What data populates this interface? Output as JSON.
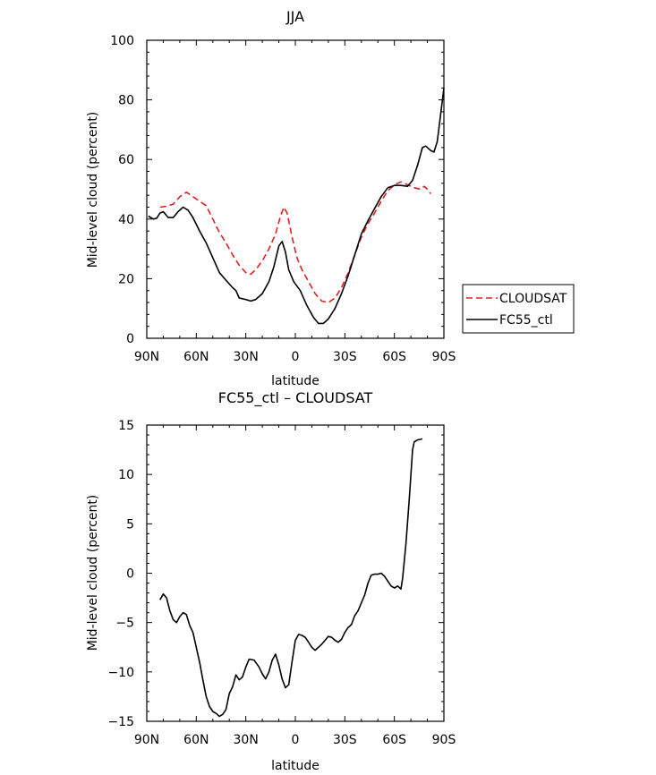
{
  "chart_data": [
    {
      "type": "line",
      "title": "JJA",
      "xlabel": "latitude",
      "ylabel": "Mid-level cloud (percent)",
      "xlim": [
        90,
        -90
      ],
      "ylim": [
        0,
        100
      ],
      "x_ticks": [
        90,
        60,
        30,
        0,
        -30,
        -60,
        -90
      ],
      "x_tick_labels": [
        "90N",
        "60N",
        "30N",
        "0",
        "30S",
        "60S",
        "90S"
      ],
      "y_ticks": [
        0,
        20,
        40,
        60,
        80,
        100
      ],
      "y_tick_labels": [
        "0",
        "20",
        "40",
        "60",
        "80",
        "100"
      ],
      "legend": {
        "placement": "right-outside"
      },
      "series": [
        {
          "name": "CLOUDSAT",
          "color": "#e02020",
          "dash": true,
          "points": [
            [
              82,
              44
            ],
            [
              78,
              44.3
            ],
            [
              74,
              45
            ],
            [
              70,
              47.5
            ],
            [
              66,
              49
            ],
            [
              62,
              47.5
            ],
            [
              58,
              46
            ],
            [
              54,
              44.5
            ],
            [
              50,
              40
            ],
            [
              46,
              35.5
            ],
            [
              42,
              32
            ],
            [
              38,
              28
            ],
            [
              34,
              24.5
            ],
            [
              30,
              22
            ],
            [
              27,
              21.5
            ],
            [
              24,
              23
            ],
            [
              20,
              26
            ],
            [
              16,
              30
            ],
            [
              12,
              35
            ],
            [
              9,
              41
            ],
            [
              7,
              44
            ],
            [
              5,
              42
            ],
            [
              2,
              34
            ],
            [
              -1,
              27
            ],
            [
              -4,
              23
            ],
            [
              -8,
              19
            ],
            [
              -12,
              15
            ],
            [
              -16,
              12.5
            ],
            [
              -20,
              12
            ],
            [
              -24,
              13.5
            ],
            [
              -28,
              17
            ],
            [
              -32,
              22
            ],
            [
              -36,
              28
            ],
            [
              -40,
              34
            ],
            [
              -44,
              38.5
            ],
            [
              -48,
              42
            ],
            [
              -52,
              46
            ],
            [
              -56,
              49.5
            ],
            [
              -60,
              51.5
            ],
            [
              -64,
              52.5
            ],
            [
              -68,
              51.5
            ],
            [
              -72,
              50.5
            ],
            [
              -76,
              50
            ],
            [
              -78,
              51
            ],
            [
              -80,
              50
            ],
            [
              -82,
              48.5
            ]
          ]
        },
        {
          "name": "FC55_ctl",
          "color": "#000000",
          "dash": false,
          "points": [
            [
              89,
              41
            ],
            [
              86,
              40
            ],
            [
              84,
              40.3
            ],
            [
              82,
              42
            ],
            [
              80,
              42.5
            ],
            [
              77,
              40.5
            ],
            [
              74,
              40.5
            ],
            [
              71,
              42.5
            ],
            [
              68,
              44
            ],
            [
              65,
              43
            ],
            [
              62,
              40.5
            ],
            [
              58,
              36
            ],
            [
              54,
              32
            ],
            [
              50,
              27
            ],
            [
              46,
              22
            ],
            [
              42,
              19.5
            ],
            [
              38,
              17
            ],
            [
              36,
              16
            ],
            [
              34,
              13.5
            ],
            [
              30,
              13
            ],
            [
              27,
              12.5
            ],
            [
              24,
              13
            ],
            [
              20,
              15
            ],
            [
              16,
              19
            ],
            [
              13,
              24
            ],
            [
              10,
              31
            ],
            [
              8,
              32.5
            ],
            [
              6,
              29
            ],
            [
              4,
              23
            ],
            [
              1,
              19
            ],
            [
              -3,
              16
            ],
            [
              -7,
              11
            ],
            [
              -11,
              7
            ],
            [
              -14,
              5
            ],
            [
              -17,
              5
            ],
            [
              -20,
              6.5
            ],
            [
              -24,
              10
            ],
            [
              -28,
              15
            ],
            [
              -32,
              21
            ],
            [
              -36,
              28
            ],
            [
              -40,
              35
            ],
            [
              -44,
              39.5
            ],
            [
              -48,
              43.5
            ],
            [
              -52,
              47.5
            ],
            [
              -56,
              50.5
            ],
            [
              -60,
              51.3
            ],
            [
              -64,
              51.3
            ],
            [
              -68,
              51
            ],
            [
              -71,
              53
            ],
            [
              -74,
              58
            ],
            [
              -77,
              64
            ],
            [
              -79,
              64.5
            ],
            [
              -82,
              63
            ],
            [
              -84,
              62.5
            ],
            [
              -86,
              66
            ],
            [
              -88,
              75
            ],
            [
              -90,
              84
            ]
          ]
        }
      ]
    },
    {
      "type": "line",
      "title": "FC55_ctl – CLOUDSAT",
      "xlabel": "latitude",
      "ylabel": "Mid-level cloud (percent)",
      "xlim": [
        90,
        -90
      ],
      "ylim": [
        -15,
        15
      ],
      "x_ticks": [
        90,
        60,
        30,
        0,
        -30,
        -60,
        -90
      ],
      "x_tick_labels": [
        "90N",
        "60N",
        "30N",
        "0",
        "30S",
        "60S",
        "90S"
      ],
      "y_ticks": [
        -15,
        -10,
        -5,
        0,
        5,
        10,
        15
      ],
      "y_tick_labels": [
        "−15",
        "−10",
        "−5",
        "0",
        "5",
        "10",
        "15"
      ],
      "series": [
        {
          "color": "#000000",
          "dash": false,
          "points": [
            [
              82,
              -2.7
            ],
            [
              80,
              -2.1
            ],
            [
              78,
              -2.5
            ],
            [
              76,
              -3.8
            ],
            [
              74,
              -4.7
            ],
            [
              72,
              -5.0
            ],
            [
              70,
              -4.4
            ],
            [
              68,
              -4.0
            ],
            [
              66,
              -4.2
            ],
            [
              64,
              -5.3
            ],
            [
              62,
              -6.0
            ],
            [
              60,
              -7.5
            ],
            [
              58,
              -9.0
            ],
            [
              56,
              -10.8
            ],
            [
              54,
              -12.5
            ],
            [
              52,
              -13.5
            ],
            [
              50,
              -14.0
            ],
            [
              48,
              -14.2
            ],
            [
              46,
              -14.5
            ],
            [
              44,
              -14.3
            ],
            [
              42,
              -13.8
            ],
            [
              40,
              -12.2
            ],
            [
              38,
              -11.5
            ],
            [
              36,
              -10.3
            ],
            [
              34,
              -10.8
            ],
            [
              32,
              -10.5
            ],
            [
              30,
              -9.5
            ],
            [
              28,
              -8.7
            ],
            [
              25,
              -8.8
            ],
            [
              22,
              -9.5
            ],
            [
              20,
              -10.2
            ],
            [
              18,
              -10.7
            ],
            [
              16,
              -10.0
            ],
            [
              14,
              -8.8
            ],
            [
              12,
              -8.2
            ],
            [
              10,
              -9.3
            ],
            [
              8,
              -10.7
            ],
            [
              6,
              -11.6
            ],
            [
              4,
              -11.3
            ],
            [
              2,
              -9.0
            ],
            [
              0,
              -6.8
            ],
            [
              -2,
              -6.2
            ],
            [
              -4,
              -6.3
            ],
            [
              -6,
              -6.5
            ],
            [
              -8,
              -7.0
            ],
            [
              -10,
              -7.5
            ],
            [
              -12,
              -7.8
            ],
            [
              -14,
              -7.5
            ],
            [
              -16,
              -7.2
            ],
            [
              -18,
              -6.8
            ],
            [
              -20,
              -6.4
            ],
            [
              -22,
              -6.5
            ],
            [
              -24,
              -6.8
            ],
            [
              -26,
              -7.0
            ],
            [
              -28,
              -6.7
            ],
            [
              -30,
              -6.0
            ],
            [
              -32,
              -5.5
            ],
            [
              -34,
              -5.2
            ],
            [
              -36,
              -4.3
            ],
            [
              -38,
              -3.8
            ],
            [
              -40,
              -3.0
            ],
            [
              -42,
              -2.2
            ],
            [
              -44,
              -1.0
            ],
            [
              -46,
              -0.2
            ],
            [
              -48,
              -0.1
            ],
            [
              -50,
              -0.1
            ],
            [
              -52,
              0.0
            ],
            [
              -54,
              -0.3
            ],
            [
              -56,
              -0.8
            ],
            [
              -58,
              -1.3
            ],
            [
              -60,
              -1.5
            ],
            [
              -62,
              -1.3
            ],
            [
              -64,
              -1.6
            ],
            [
              -65,
              -0.5
            ],
            [
              -67,
              3.0
            ],
            [
              -69,
              7.5
            ],
            [
              -71,
              12.5
            ],
            [
              -72,
              13.3
            ],
            [
              -74,
              13.5
            ],
            [
              -77,
              13.6
            ]
          ]
        }
      ]
    }
  ]
}
